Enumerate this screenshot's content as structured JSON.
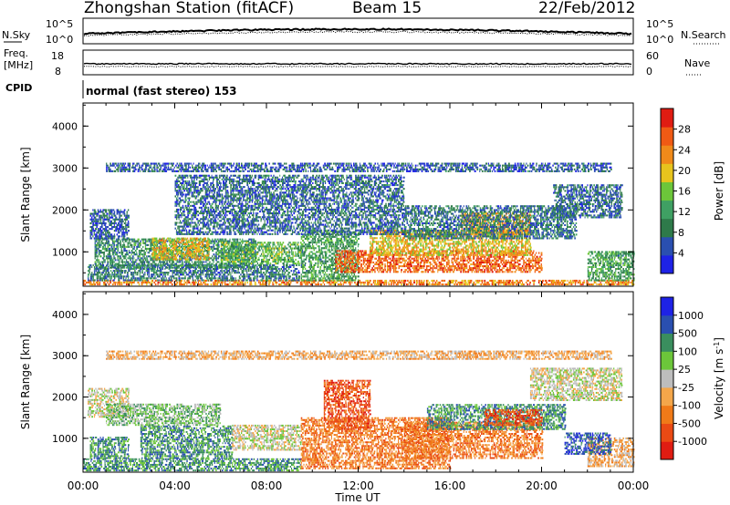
{
  "header": {
    "title": "Zhongshan Station (fitACF)",
    "beam": "Beam 15",
    "date": "22/Feb/2012"
  },
  "top_panels": {
    "nsky_label": "N.Sky",
    "nsky_ticks": [
      "10^5",
      "10^0"
    ],
    "nsearch_label": "N.Search",
    "nsearch_ticks": [
      "10^5",
      "10^0"
    ],
    "freq_label_1": "Freq.",
    "freq_label_2": "[MHz]",
    "freq_ticks": [
      "18",
      "8"
    ],
    "nave_label": "Nave",
    "nave_ticks": [
      "60",
      "0"
    ],
    "cpid_label": "CPID",
    "cpid_text": "normal (fast stereo) 153"
  },
  "colors": {
    "power": [
      "#1e22e6",
      "#2a4fb0",
      "#2e7a4a",
      "#3fa063",
      "#6cc63a",
      "#e7c41d",
      "#f08a1a",
      "#f05a14",
      "#e01c12"
    ],
    "velocity": [
      "#e01c12",
      "#ea4a14",
      "#f07a18",
      "#f4a64a",
      "#bdbdbd",
      "#6cc63a",
      "#3a8e5e",
      "#2a4fb0",
      "#1e22e6"
    ]
  },
  "chart_data": [
    {
      "type": "heatmap",
      "title": "Power",
      "xlabel": "Time UT",
      "ylabel": "Slant Range [km]",
      "x_ticks": [
        "00:00",
        "04:00",
        "08:00",
        "12:00",
        "16:00",
        "20:00",
        "00:00"
      ],
      "xlim": [
        0,
        24
      ],
      "y_ticks": [
        "1000",
        "2000",
        "3000",
        "4000"
      ],
      "ylim": [
        180,
        4550
      ],
      "colorbar": {
        "label": "Power [dB]",
        "ticks": [
          "4",
          "8",
          "12",
          "16",
          "20",
          "24",
          "28"
        ],
        "range": [
          0,
          32
        ]
      },
      "blobs": [
        {
          "t0": 0.0,
          "t1": 24.0,
          "r0": 200,
          "r1": 300,
          "v": 24
        },
        {
          "t0": 0.2,
          "t1": 9.4,
          "r0": 300,
          "r1": 700,
          "v": 8
        },
        {
          "t0": 0.5,
          "t1": 7.5,
          "r0": 600,
          "r1": 1300,
          "v": 10
        },
        {
          "t0": 3.0,
          "t1": 5.5,
          "r0": 800,
          "r1": 1300,
          "v": 20
        },
        {
          "t0": 0.3,
          "t1": 2.0,
          "r0": 1300,
          "r1": 2000,
          "v": 6
        },
        {
          "t0": 6.0,
          "t1": 9.5,
          "r0": 700,
          "r1": 1200,
          "v": 14
        },
        {
          "t0": 9.5,
          "t1": 12.0,
          "r0": 300,
          "r1": 1500,
          "v": 12
        },
        {
          "t0": 11.0,
          "t1": 20.0,
          "r0": 500,
          "r1": 1000,
          "v": 26
        },
        {
          "t0": 12.5,
          "t1": 19.5,
          "r0": 900,
          "r1": 1500,
          "v": 20
        },
        {
          "t0": 16.5,
          "t1": 19.5,
          "r0": 1400,
          "r1": 1900,
          "v": 22
        },
        {
          "t0": 14.0,
          "t1": 21.5,
          "r0": 1300,
          "r1": 2100,
          "v": 8
        },
        {
          "t0": 20.5,
          "t1": 23.5,
          "r0": 1800,
          "r1": 2600,
          "v": 7
        },
        {
          "t0": 22.0,
          "t1": 24.0,
          "r0": 300,
          "r1": 1000,
          "v": 12
        },
        {
          "t0": 4.0,
          "t1": 14.0,
          "r0": 1400,
          "r1": 2800,
          "v": 7
        },
        {
          "t0": 1.0,
          "t1": 23.0,
          "r0": 2900,
          "r1": 3100,
          "v": 6
        }
      ]
    },
    {
      "type": "heatmap",
      "title": "Velocity",
      "xlabel": "Time UT",
      "ylabel": "Slant Range [km]",
      "x_ticks": [
        "00:00",
        "04:00",
        "08:00",
        "12:00",
        "16:00",
        "20:00",
        "00:00"
      ],
      "xlim": [
        0,
        24
      ],
      "y_ticks": [
        "1000",
        "2000",
        "3000",
        "4000"
      ],
      "ylim": [
        180,
        4550
      ],
      "colorbar": {
        "label": "Velocity [m s",
        "label_sup": "-1",
        "label_end": "]",
        "ticks": [
          "-1000",
          "-500",
          "-100",
          "-25",
          "25",
          "100",
          "500",
          "1000"
        ]
      },
      "blobs": [
        {
          "t0": 0.0,
          "t1": 9.5,
          "r0": 200,
          "r1": 500,
          "v": 6
        },
        {
          "t0": 0.3,
          "t1": 2.0,
          "r0": 500,
          "r1": 1000,
          "v": 6
        },
        {
          "t0": 2.5,
          "t1": 6.5,
          "r0": 500,
          "r1": 1300,
          "v": 6
        },
        {
          "t0": 0.2,
          "t1": 2.0,
          "r0": 1500,
          "r1": 2200,
          "v": 4
        },
        {
          "t0": 1.0,
          "t1": 6.0,
          "r0": 1300,
          "r1": 1800,
          "v": 5
        },
        {
          "t0": 6.5,
          "t1": 9.5,
          "r0": 700,
          "r1": 1300,
          "v": 4
        },
        {
          "t0": 9.5,
          "t1": 16.0,
          "r0": 250,
          "r1": 1500,
          "v": 2
        },
        {
          "t0": 10.5,
          "t1": 12.5,
          "r0": 1200,
          "r1": 2400,
          "v": 1
        },
        {
          "t0": 14.0,
          "t1": 20.0,
          "r0": 500,
          "r1": 1400,
          "v": 2
        },
        {
          "t0": 15.0,
          "t1": 21.0,
          "r0": 1200,
          "r1": 1800,
          "v": 6
        },
        {
          "t0": 17.5,
          "t1": 20.0,
          "r0": 1300,
          "r1": 1700,
          "v": 1
        },
        {
          "t0": 19.5,
          "t1": 23.5,
          "r0": 1900,
          "r1": 2700,
          "v": 4
        },
        {
          "t0": 22.0,
          "t1": 24.0,
          "r0": 300,
          "r1": 1000,
          "v": 3
        },
        {
          "t0": 21.0,
          "t1": 23.0,
          "r0": 600,
          "r1": 1100,
          "v": 7
        },
        {
          "t0": 1.0,
          "t1": 23.0,
          "r0": 2900,
          "r1": 3100,
          "v": 3
        }
      ]
    }
  ]
}
